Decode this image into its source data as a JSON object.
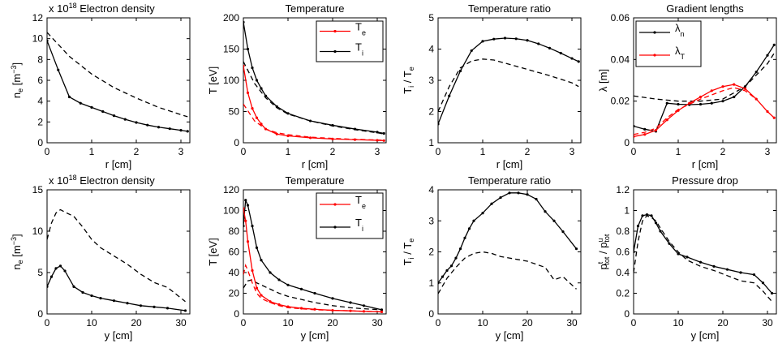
{
  "figure": {
    "background": "#ffffff",
    "colors": {
      "black": "#000000",
      "red": "#ff0000"
    }
  },
  "chart_data": [
    {
      "id": "p1",
      "type": "line",
      "title": "Electron density",
      "exponent": "x 10",
      "exponent_power": "18",
      "xlabel": "r [cm]",
      "ylabel": "n_e [m^-3]",
      "ylabel_parts": {
        "base": "n",
        "sub": "e",
        "unit": " [m",
        "sup": "−3",
        "close": "]"
      },
      "xlim": [
        0,
        3.2
      ],
      "ylim": [
        0,
        12
      ],
      "xticks": [
        0,
        1,
        2,
        3
      ],
      "yticks": [
        0,
        2,
        4,
        6,
        8,
        10,
        12
      ],
      "series": [
        {
          "name": "solid",
          "color": "#000000",
          "dash": false,
          "markers": true,
          "x": [
            0,
            0.25,
            0.5,
            0.75,
            1.0,
            1.25,
            1.5,
            1.75,
            2.0,
            2.25,
            2.5,
            2.75,
            3.0,
            3.15
          ],
          "y": [
            9.8,
            7.0,
            4.4,
            3.8,
            3.4,
            3.0,
            2.6,
            2.25,
            1.95,
            1.7,
            1.5,
            1.35,
            1.2,
            1.1
          ]
        },
        {
          "name": "dashed",
          "color": "#000000",
          "dash": true,
          "markers": false,
          "x": [
            0,
            0.5,
            1.0,
            1.5,
            2.0,
            2.5,
            3.0,
            3.15
          ],
          "y": [
            10.6,
            8.3,
            6.6,
            5.3,
            4.3,
            3.4,
            2.7,
            2.5
          ]
        }
      ]
    },
    {
      "id": "p2",
      "type": "line",
      "title": "Temperature",
      "xlabel": "r [cm]",
      "ylabel": "T [eV]",
      "xlim": [
        0,
        3.2
      ],
      "ylim": [
        0,
        200
      ],
      "xticks": [
        0,
        1,
        2,
        3
      ],
      "yticks": [
        0,
        50,
        100,
        150,
        200
      ],
      "legend": [
        {
          "base": "T",
          "sub": "e",
          "color": "#ff0000"
        },
        {
          "base": "T",
          "sub": "i",
          "color": "#000000"
        }
      ],
      "series": [
        {
          "name": "T_i",
          "color": "#000000",
          "dash": false,
          "markers": true,
          "x": [
            0,
            0.1,
            0.2,
            0.3,
            0.4,
            0.5,
            0.75,
            1.0,
            1.5,
            2.0,
            2.5,
            3.0,
            3.15
          ],
          "y": [
            193,
            150,
            120,
            100,
            87,
            75,
            58,
            47,
            35,
            28,
            22,
            17,
            15
          ]
        },
        {
          "name": "T_i dashed",
          "color": "#000000",
          "dash": true,
          "markers": false,
          "x": [
            0,
            0.25,
            0.5,
            0.75,
            1.0,
            1.5,
            2.0,
            2.5,
            3.0,
            3.15
          ],
          "y": [
            130,
            95,
            72,
            56,
            46,
            35,
            27,
            21,
            16,
            14
          ]
        },
        {
          "name": "T_e",
          "color": "#ff0000",
          "dash": false,
          "markers": true,
          "x": [
            0,
            0.1,
            0.2,
            0.3,
            0.4,
            0.5,
            0.75,
            1.0,
            1.5,
            2.0,
            2.5,
            3.0,
            3.15
          ],
          "y": [
            123,
            80,
            55,
            40,
            30,
            22,
            14,
            11,
            8,
            6,
            5,
            4,
            3.5
          ]
        },
        {
          "name": "T_e dashed",
          "color": "#ff0000",
          "dash": true,
          "markers": false,
          "x": [
            0,
            0.25,
            0.5,
            0.75,
            1.0,
            1.5,
            2.0,
            2.5,
            3.0,
            3.15
          ],
          "y": [
            62,
            35,
            22,
            16,
            13,
            9,
            7,
            5.5,
            4.5,
            4
          ]
        }
      ]
    },
    {
      "id": "p3",
      "type": "line",
      "title": "Temperature ratio",
      "xlabel": "r [cm]",
      "ylabel": "T_i / T_e",
      "ylabel_parts": {
        "a": "T",
        "asub": "i",
        "mid": " / T",
        "bsub": "e"
      },
      "xlim": [
        0,
        3.2
      ],
      "ylim": [
        1,
        5
      ],
      "xticks": [
        0,
        1,
        2,
        3
      ],
      "yticks": [
        1,
        2,
        3,
        4,
        5
      ],
      "series": [
        {
          "name": "solid",
          "color": "#000000",
          "dash": false,
          "markers": true,
          "x": [
            0,
            0.25,
            0.5,
            0.75,
            1.0,
            1.25,
            1.5,
            1.75,
            2.0,
            2.25,
            2.5,
            2.75,
            3.0,
            3.15
          ],
          "y": [
            1.6,
            2.5,
            3.3,
            3.95,
            4.25,
            4.32,
            4.35,
            4.33,
            4.28,
            4.17,
            4.03,
            3.87,
            3.7,
            3.6
          ]
        },
        {
          "name": "dashed",
          "color": "#000000",
          "dash": true,
          "markers": false,
          "x": [
            0,
            0.25,
            0.5,
            0.75,
            1.0,
            1.25,
            1.5,
            2.0,
            2.5,
            3.0,
            3.15
          ],
          "y": [
            2.0,
            2.8,
            3.4,
            3.62,
            3.68,
            3.65,
            3.55,
            3.35,
            3.15,
            2.92,
            2.8
          ]
        }
      ]
    },
    {
      "id": "p4",
      "type": "line",
      "title": "Gradient lengths",
      "xlabel": "r [cm]",
      "ylabel": "λ [m]",
      "xlim": [
        0,
        3.2
      ],
      "ylim": [
        0,
        0.06
      ],
      "xticks": [
        0,
        1,
        2,
        3
      ],
      "yticks": [
        0,
        0.02,
        0.04,
        0.06
      ],
      "legend": [
        {
          "base": "λ",
          "sub": "n",
          "color": "#000000"
        },
        {
          "base": "λ",
          "sub": "T",
          "color": "#ff0000"
        }
      ],
      "series": [
        {
          "name": "λ_n",
          "color": "#000000",
          "dash": false,
          "markers": true,
          "x": [
            0,
            0.25,
            0.5,
            0.75,
            1.0,
            1.25,
            1.5,
            1.75,
            2.0,
            2.25,
            2.5,
            2.75,
            3.0,
            3.15
          ],
          "y": [
            0.008,
            0.0065,
            0.0055,
            0.019,
            0.0185,
            0.0183,
            0.0185,
            0.019,
            0.02,
            0.022,
            0.027,
            0.034,
            0.042,
            0.047
          ]
        },
        {
          "name": "λ_n dashed",
          "color": "#000000",
          "dash": true,
          "markers": false,
          "x": [
            0,
            0.5,
            1.0,
            1.5,
            2.0,
            2.5,
            3.0,
            3.15
          ],
          "y": [
            0.0225,
            0.021,
            0.02,
            0.02,
            0.021,
            0.027,
            0.038,
            0.043
          ]
        },
        {
          "name": "λ_T",
          "color": "#ff0000",
          "dash": false,
          "markers": true,
          "x": [
            0,
            0.25,
            0.5,
            0.75,
            1.0,
            1.25,
            1.5,
            1.75,
            2.0,
            2.25,
            2.5,
            2.75,
            3.0,
            3.15
          ],
          "y": [
            0.003,
            0.004,
            0.006,
            0.011,
            0.0155,
            0.019,
            0.022,
            0.025,
            0.027,
            0.028,
            0.026,
            0.021,
            0.015,
            0.012
          ]
        },
        {
          "name": "λ_T dashed",
          "color": "#ff0000",
          "dash": true,
          "markers": false,
          "x": [
            0,
            0.25,
            0.5,
            0.75,
            1.0,
            1.5,
            2.0,
            2.25,
            2.5,
            2.75
          ],
          "y": [
            0.004,
            0.005,
            0.007,
            0.012,
            0.016,
            0.021,
            0.025,
            0.0265,
            0.025,
            0.021
          ]
        }
      ]
    },
    {
      "id": "p5",
      "type": "line",
      "title": "Electron density",
      "exponent": "x 10",
      "exponent_power": "18",
      "xlabel": "y [cm]",
      "ylabel": "n_e [m^-3]",
      "ylabel_parts": {
        "base": "n",
        "sub": "e",
        "unit": " [m",
        "sup": "−3",
        "close": "]"
      },
      "xlim": [
        0,
        32
      ],
      "ylim": [
        0,
        15
      ],
      "xticks": [
        0,
        10,
        20,
        30
      ],
      "yticks": [
        0,
        5,
        10,
        15
      ],
      "series": [
        {
          "name": "solid",
          "color": "#000000",
          "dash": false,
          "markers": true,
          "x": [
            0,
            1,
            2,
            3,
            4,
            6,
            8,
            10,
            12,
            15,
            18,
            21,
            24,
            27,
            31
          ],
          "y": [
            3.3,
            4.5,
            5.5,
            5.8,
            5.2,
            3.3,
            2.6,
            2.2,
            1.9,
            1.6,
            1.3,
            1.0,
            0.85,
            0.7,
            0.4
          ]
        },
        {
          "name": "dashed",
          "color": "#000000",
          "dash": true,
          "markers": false,
          "x": [
            0,
            1,
            2,
            3,
            4,
            6,
            8,
            10,
            12,
            15,
            18,
            21,
            24,
            27,
            31
          ],
          "y": [
            9.0,
            11.0,
            12.2,
            12.6,
            12.3,
            11.8,
            10.5,
            9.0,
            8.0,
            7.0,
            6.0,
            4.8,
            3.8,
            3.2,
            1.5
          ]
        }
      ]
    },
    {
      "id": "p6",
      "type": "line",
      "title": "Temperature",
      "xlabel": "y [cm]",
      "ylabel": "T [eV]",
      "xlim": [
        0,
        32
      ],
      "ylim": [
        0,
        120
      ],
      "xticks": [
        0,
        10,
        20,
        30
      ],
      "yticks": [
        0,
        20,
        40,
        60,
        80,
        100,
        120
      ],
      "legend": [
        {
          "base": "T",
          "sub": "e",
          "color": "#ff0000"
        },
        {
          "base": "T",
          "sub": "i",
          "color": "#000000"
        }
      ],
      "series": [
        {
          "name": "T_i",
          "color": "#000000",
          "dash": false,
          "markers": true,
          "x": [
            0,
            0.5,
            1,
            2,
            3,
            4,
            6,
            8,
            10,
            13,
            16,
            20,
            24,
            27,
            31
          ],
          "y": [
            85,
            110,
            105,
            85,
            64,
            52,
            40,
            33,
            28,
            24,
            20,
            15,
            11,
            8,
            4
          ]
        },
        {
          "name": "T_i dashed",
          "color": "#000000",
          "dash": true,
          "markers": false,
          "x": [
            0,
            1,
            2,
            3,
            4,
            6,
            8,
            10,
            13,
            16,
            20,
            24,
            27,
            31
          ],
          "y": [
            25,
            32,
            33,
            30,
            28,
            24,
            20,
            17,
            14,
            11,
            8,
            6,
            5,
            4
          ]
        },
        {
          "name": "T_e",
          "color": "#ff0000",
          "dash": false,
          "markers": true,
          "x": [
            0,
            0.5,
            1,
            2,
            3,
            4,
            6,
            8,
            10,
            13,
            16,
            20,
            24,
            27,
            31
          ],
          "y": [
            102,
            90,
            70,
            42,
            25,
            18,
            12,
            9,
            7,
            5.5,
            4.5,
            3.5,
            3,
            2.5,
            2
          ]
        },
        {
          "name": "T_e dashed",
          "color": "#ff0000",
          "dash": true,
          "markers": false,
          "x": [
            0,
            0.5,
            1,
            2,
            3,
            4,
            6,
            8,
            10,
            13,
            16,
            20,
            24,
            27,
            31
          ],
          "y": [
            38,
            47,
            42,
            30,
            20,
            15,
            11,
            8,
            6,
            5,
            4,
            3.5,
            3,
            2.5,
            2
          ]
        }
      ]
    },
    {
      "id": "p7",
      "type": "line",
      "title": "Temperature ratio",
      "xlabel": "y [cm]",
      "ylabel": "T_i / T_e",
      "ylabel_parts": {
        "a": "T",
        "asub": "i",
        "mid": " / T",
        "bsub": "e"
      },
      "xlim": [
        0,
        32
      ],
      "ylim": [
        0,
        4
      ],
      "xticks": [
        0,
        10,
        20,
        30
      ],
      "yticks": [
        0,
        1,
        2,
        3,
        4
      ],
      "series": [
        {
          "name": "solid",
          "color": "#000000",
          "dash": false,
          "markers": true,
          "x": [
            0,
            1,
            2,
            3,
            4,
            5,
            6,
            7,
            8,
            10,
            12,
            14,
            16,
            18,
            20,
            22,
            24,
            26,
            28,
            31
          ],
          "y": [
            1.0,
            1.2,
            1.4,
            1.55,
            1.8,
            2.1,
            2.45,
            2.75,
            3.0,
            3.25,
            3.55,
            3.75,
            3.9,
            3.9,
            3.85,
            3.7,
            3.3,
            3.0,
            2.65,
            2.1
          ]
        },
        {
          "name": "dashed",
          "color": "#000000",
          "dash": true,
          "markers": false,
          "x": [
            0,
            2,
            4,
            6,
            8,
            10,
            12,
            14,
            16,
            18,
            20,
            22,
            24,
            26,
            28,
            31
          ],
          "y": [
            0.65,
            1.15,
            1.5,
            1.8,
            1.95,
            2.0,
            1.95,
            1.85,
            1.8,
            1.75,
            1.7,
            1.6,
            1.5,
            1.1,
            1.2,
            0.8
          ]
        }
      ]
    },
    {
      "id": "p8",
      "type": "line",
      "title": "Pressure drop",
      "xlabel": "y [cm]",
      "ylabel": "p^t_tot / p^u_tot",
      "ylabel_parts": {
        "a": "p",
        "asup": "t",
        "asub": "tot",
        "mid": " / p",
        "bsup": "u",
        "bsub": "tot"
      },
      "xlim": [
        0,
        32
      ],
      "ylim": [
        0,
        1.2
      ],
      "xticks": [
        0,
        10,
        20,
        30
      ],
      "yticks": [
        0,
        0.2,
        0.4,
        0.6,
        0.8,
        1,
        1.2
      ],
      "series": [
        {
          "name": "solid",
          "color": "#000000",
          "dash": false,
          "markers": true,
          "x": [
            0,
            1,
            2,
            3,
            4,
            5,
            6,
            8,
            10,
            12,
            15,
            18,
            21,
            24,
            27,
            29,
            31
          ],
          "y": [
            0.6,
            0.85,
            0.95,
            0.96,
            0.95,
            0.88,
            0.8,
            0.68,
            0.58,
            0.55,
            0.5,
            0.46,
            0.43,
            0.4,
            0.38,
            0.3,
            0.2
          ]
        },
        {
          "name": "dashed",
          "color": "#000000",
          "dash": true,
          "markers": false,
          "x": [
            0,
            1,
            2,
            3,
            4,
            5,
            6,
            8,
            10,
            12,
            15,
            18,
            21,
            24,
            27,
            29,
            31
          ],
          "y": [
            0.4,
            0.7,
            0.9,
            0.95,
            0.93,
            0.9,
            0.83,
            0.7,
            0.6,
            0.52,
            0.46,
            0.42,
            0.37,
            0.32,
            0.3,
            0.22,
            0.12
          ]
        }
      ]
    }
  ]
}
